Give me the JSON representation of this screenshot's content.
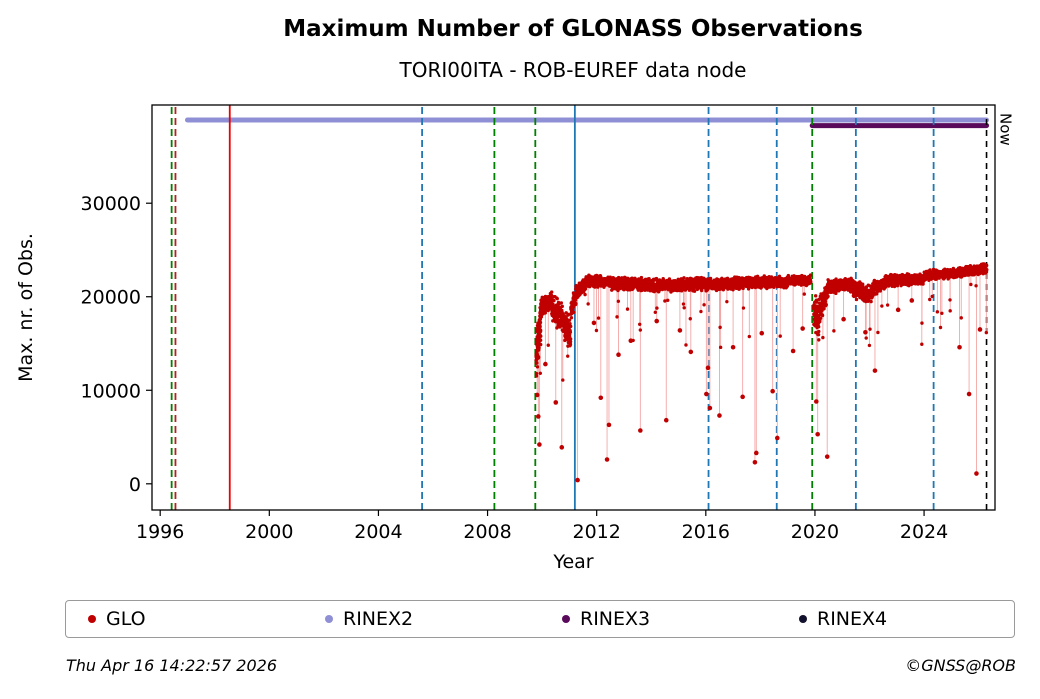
{
  "title": "Maximum Number of GLONASS Observations",
  "subtitle": "TORI00ITA - ROB-EUREF data node",
  "footer": {
    "timestamp": "Thu Apr 16 14:22:57 2026",
    "credit": "©GNSS@ROB"
  },
  "legend": {
    "items": [
      {
        "label": "GLO",
        "color": "#c00000"
      },
      {
        "label": "RINEX2",
        "color": "#8f8fd6"
      },
      {
        "label": "RINEX3",
        "color": "#5a0a5a"
      },
      {
        "label": "RINEX4",
        "color": "#12122e"
      }
    ]
  },
  "chart_data": {
    "type": "scatter",
    "title": "Maximum Number of GLONASS Observations",
    "subtitle": "TORI00ITA - ROB-EUREF data node",
    "xlabel": "Year",
    "ylabel": "Max. nr. of Obs.",
    "xlim": [
      1995.7,
      2026.6
    ],
    "ylim": [
      -2800,
      40500
    ],
    "xticks": [
      1996,
      2000,
      2004,
      2008,
      2012,
      2016,
      2020,
      2024
    ],
    "yticks": [
      0,
      10000,
      20000,
      30000
    ],
    "grid": false,
    "legend_position": "bottom",
    "now_marker": {
      "x": 2026.29,
      "label": "Now",
      "color": "#000000",
      "style": "dashed"
    },
    "availability_bands": [
      {
        "name": "RINEX2",
        "x_start": 1997.0,
        "x_end": 2026.29,
        "y": 38900,
        "color": "#8f8fd6"
      },
      {
        "name": "RINEX3",
        "x_start": 2019.9,
        "x_end": 2026.29,
        "y": 38300,
        "color": "#5a0a5a"
      }
    ],
    "event_lines": [
      {
        "x": 1996.42,
        "color": "#008000",
        "style": "dashed"
      },
      {
        "x": 1996.56,
        "color": "#b22222",
        "style": "dashed"
      },
      {
        "x": 1998.55,
        "color": "#ee0000",
        "style": "solid"
      },
      {
        "x": 2005.6,
        "color": "#1f77b4",
        "style": "dashed"
      },
      {
        "x": 2008.25,
        "color": "#008000",
        "style": "dashed"
      },
      {
        "x": 2009.75,
        "color": "#008000",
        "style": "dashed"
      },
      {
        "x": 2011.2,
        "color": "#1f77b4",
        "style": "solid"
      },
      {
        "x": 2016.1,
        "color": "#1f77b4",
        "style": "dashed"
      },
      {
        "x": 2018.6,
        "color": "#1f77b4",
        "style": "dashed"
      },
      {
        "x": 2019.9,
        "color": "#008000",
        "style": "dashed"
      },
      {
        "x": 2021.5,
        "color": "#1f77b4",
        "style": "dashed"
      },
      {
        "x": 2024.35,
        "color": "#1f77b4",
        "style": "dashed"
      }
    ],
    "series": [
      {
        "name": "GLO",
        "color": "#c00000",
        "stem_color": "#f4a6a6",
        "marker_size": 1.7,
        "band_segments_format": "x_start,x_end,y_mean_start,y_mean_end,y_spread,points_per_year",
        "band_segments": [
          [
            2009.78,
            2009.95,
            13500,
            17500,
            2600,
            700
          ],
          [
            2009.95,
            2010.35,
            18800,
            19600,
            1100,
            320
          ],
          [
            2010.35,
            2010.75,
            19000,
            17800,
            1700,
            320
          ],
          [
            2010.75,
            2011.05,
            17200,
            16200,
            1900,
            320
          ],
          [
            2011.05,
            2011.25,
            18500,
            20300,
            1200,
            320
          ],
          [
            2011.25,
            2011.6,
            20600,
            21300,
            800,
            300
          ],
          [
            2011.6,
            2012.5,
            21700,
            21600,
            700,
            260
          ],
          [
            2012.5,
            2014.0,
            21400,
            21300,
            800,
            240
          ],
          [
            2014.0,
            2016.0,
            21200,
            21400,
            800,
            240
          ],
          [
            2016.0,
            2017.5,
            21300,
            21500,
            750,
            240
          ],
          [
            2017.5,
            2019.0,
            21500,
            21600,
            700,
            240
          ],
          [
            2019.0,
            2019.85,
            21700,
            21800,
            600,
            240
          ],
          [
            2019.95,
            2020.15,
            19000,
            17000,
            2200,
            300
          ],
          [
            2020.15,
            2020.5,
            18500,
            20800,
            1500,
            300
          ],
          [
            2020.5,
            2021.4,
            21100,
            21300,
            800,
            240
          ],
          [
            2021.4,
            2022.1,
            20700,
            20400,
            1100,
            240
          ],
          [
            2022.1,
            2022.6,
            20800,
            21500,
            900,
            240
          ],
          [
            2022.6,
            2024.0,
            21700,
            21900,
            700,
            240
          ],
          [
            2024.0,
            2025.0,
            22300,
            22500,
            600,
            240
          ],
          [
            2025.0,
            2026.3,
            22500,
            23000,
            600,
            240
          ]
        ],
        "outliers": [
          [
            2009.82,
            9500
          ],
          [
            2009.86,
            7200
          ],
          [
            2009.9,
            4200
          ],
          [
            2010.12,
            12800
          ],
          [
            2010.5,
            8700
          ],
          [
            2010.72,
            3900
          ],
          [
            2011.3,
            400
          ],
          [
            2011.9,
            17200
          ],
          [
            2012.15,
            9200
          ],
          [
            2012.38,
            2600
          ],
          [
            2012.45,
            6300
          ],
          [
            2012.8,
            13800
          ],
          [
            2013.25,
            15300
          ],
          [
            2013.6,
            5700
          ],
          [
            2014.2,
            17400
          ],
          [
            2014.55,
            6800
          ],
          [
            2015.05,
            16400
          ],
          [
            2015.45,
            14100
          ],
          [
            2016.02,
            9600
          ],
          [
            2016.08,
            12400
          ],
          [
            2016.15,
            8100
          ],
          [
            2016.5,
            7300
          ],
          [
            2017.0,
            14600
          ],
          [
            2017.35,
            9300
          ],
          [
            2017.8,
            2300
          ],
          [
            2017.85,
            3300
          ],
          [
            2018.05,
            16100
          ],
          [
            2018.45,
            9900
          ],
          [
            2018.62,
            4900
          ],
          [
            2019.2,
            14200
          ],
          [
            2019.55,
            16600
          ],
          [
            2020.05,
            8800
          ],
          [
            2020.1,
            5300
          ],
          [
            2020.45,
            2900
          ],
          [
            2021.05,
            17600
          ],
          [
            2021.85,
            16200
          ],
          [
            2022.2,
            12100
          ],
          [
            2023.05,
            18600
          ],
          [
            2023.55,
            19600
          ],
          [
            2025.3,
            14600
          ],
          [
            2025.65,
            9600
          ],
          [
            2025.92,
            1100
          ],
          [
            2026.05,
            16500
          ]
        ]
      }
    ]
  }
}
